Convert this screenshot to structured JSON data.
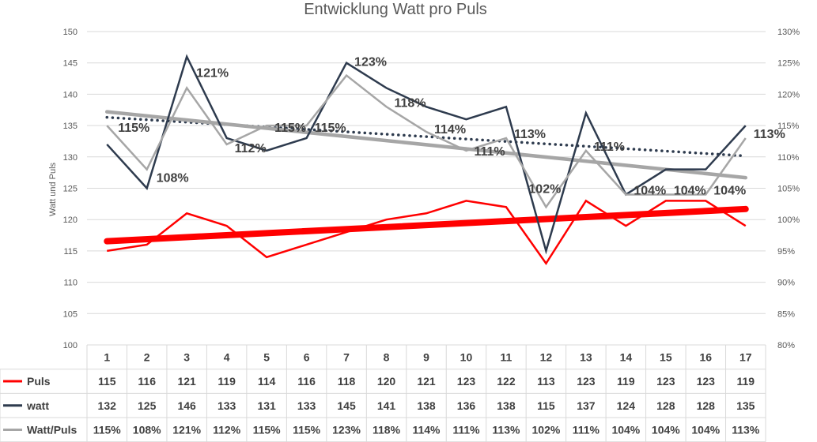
{
  "chart_data": {
    "type": "line",
    "title": "Entwicklung Watt pro Puls",
    "ylabel": "Watt und Puls",
    "ylim": [
      100,
      150
    ],
    "y_ticks": [
      "100",
      "105",
      "110",
      "115",
      "120",
      "125",
      "130",
      "135",
      "140",
      "145",
      "150"
    ],
    "y2lim": [
      80,
      130
    ],
    "y2_ticks": [
      "80%",
      "85%",
      "90%",
      "95%",
      "100%",
      "105%",
      "110%",
      "115%",
      "120%",
      "125%",
      "130%"
    ],
    "categories": [
      "1",
      "2",
      "3",
      "4",
      "5",
      "6",
      "7",
      "8",
      "9",
      "10",
      "11",
      "12",
      "13",
      "14",
      "15",
      "16",
      "17"
    ],
    "grid": true,
    "legend": "data table",
    "series": [
      {
        "name": "Puls",
        "axis": "left",
        "color": "#ff0000",
        "values": [
          115,
          116,
          121,
          119,
          114,
          116,
          118,
          120,
          121,
          123,
          122,
          113,
          123,
          119,
          123,
          123,
          119
        ]
      },
      {
        "name": "watt",
        "axis": "left",
        "color": "#2e3b4e",
        "values": [
          132,
          125,
          146,
          133,
          131,
          133,
          145,
          141,
          138,
          136,
          138,
          115,
          137,
          124,
          128,
          128,
          135
        ]
      },
      {
        "name": "Watt/Puls",
        "axis": "right",
        "color": "#a6a6a6",
        "values": [
          115,
          108,
          121,
          112,
          115,
          115,
          123,
          118,
          114,
          111,
          113,
          102,
          111,
          104,
          104,
          104,
          113
        ],
        "labels": [
          "115%",
          "108%",
          "121%",
          "112%",
          "115%",
          "115%",
          "123%",
          "118%",
          "114%",
          "111%",
          "113%",
          "102%",
          "111%",
          "104%",
          "104%",
          "104%",
          "113%"
        ]
      }
    ],
    "trendlines": [
      {
        "of": "Puls",
        "style": "solid-thick",
        "color": "#ff0000"
      },
      {
        "of": "watt",
        "style": "dotted",
        "color": "#2e3b4e"
      },
      {
        "of": "Watt/Puls",
        "style": "solid",
        "color": "#a6a6a6"
      }
    ]
  }
}
